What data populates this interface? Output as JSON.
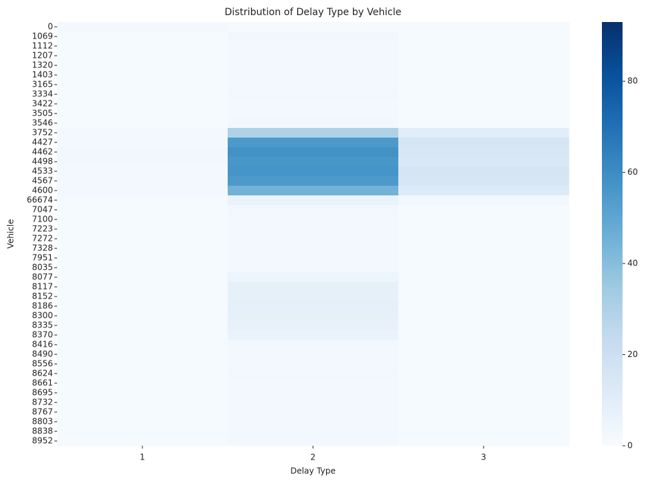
{
  "chart_data": {
    "type": "heatmap",
    "title": "Distribution of Delay Type by Vehicle",
    "x_label": "Delay Type",
    "y_label": "Vehicle",
    "x": [
      "1",
      "2",
      "3"
    ],
    "y": [
      "0",
      "1069",
      "1112",
      "1207",
      "1320",
      "1403",
      "3165",
      "3334",
      "3422",
      "3505",
      "3546",
      "3752",
      "4427",
      "4462",
      "4498",
      "4533",
      "4567",
      "4600",
      "66674",
      "7047",
      "7100",
      "7223",
      "7272",
      "7328",
      "7951",
      "8035",
      "8077",
      "8117",
      "8152",
      "8186",
      "8300",
      "8335",
      "8370",
      "8416",
      "8490",
      "8556",
      "8624",
      "8661",
      "8695",
      "8732",
      "8767",
      "8803",
      "8838",
      "8952"
    ],
    "values": [
      [
        2,
        1,
        1
      ],
      [
        1,
        3,
        1
      ],
      [
        1,
        2,
        1
      ],
      [
        1,
        2,
        1
      ],
      [
        1,
        2,
        1
      ],
      [
        1,
        2,
        1
      ],
      [
        1,
        2,
        1
      ],
      [
        1,
        3,
        1
      ],
      [
        1,
        2,
        1
      ],
      [
        1,
        2,
        1
      ],
      [
        1,
        3,
        1
      ],
      [
        2,
        30,
        10
      ],
      [
        2,
        55,
        16
      ],
      [
        3,
        58,
        15
      ],
      [
        3,
        56,
        14
      ],
      [
        2,
        57,
        16
      ],
      [
        2,
        55,
        15
      ],
      [
        2,
        45,
        12
      ],
      [
        1,
        6,
        3
      ],
      [
        1,
        3,
        1
      ],
      [
        1,
        2,
        1
      ],
      [
        1,
        2,
        1
      ],
      [
        1,
        2,
        1
      ],
      [
        1,
        2,
        1
      ],
      [
        1,
        2,
        1
      ],
      [
        1,
        2,
        1
      ],
      [
        1,
        5,
        1
      ],
      [
        1,
        8,
        1
      ],
      [
        1,
        8,
        1
      ],
      [
        1,
        9,
        1
      ],
      [
        1,
        8,
        1
      ],
      [
        1,
        7,
        1
      ],
      [
        1,
        6,
        1
      ],
      [
        1,
        2,
        1
      ],
      [
        1,
        2,
        1
      ],
      [
        1,
        2,
        1
      ],
      [
        1,
        3,
        1
      ],
      [
        1,
        2,
        1
      ],
      [
        1,
        2,
        1
      ],
      [
        1,
        2,
        1
      ],
      [
        1,
        2,
        1
      ],
      [
        1,
        2,
        1
      ],
      [
        1,
        2,
        1
      ],
      [
        1,
        2,
        1
      ]
    ],
    "zlim": [
      0,
      93
    ],
    "zticks": [
      0,
      20,
      40,
      60,
      80
    ],
    "colormap": [
      "#f7fbff",
      "#deebf7",
      "#c6dbef",
      "#9ecae1",
      "#6baed6",
      "#4292c6",
      "#2171b5",
      "#08519c",
      "#08306b"
    ]
  }
}
